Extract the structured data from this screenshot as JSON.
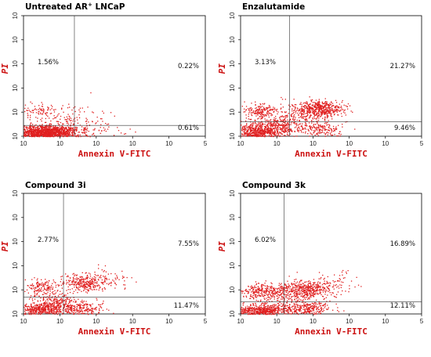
{
  "chart_data": [
    {
      "type": "scatter",
      "title": "Untreated AR",
      "title_superscript": "+",
      "title_suffix": " LNCaP",
      "xlabel": "Annexin V-FITC",
      "ylabel": "PI",
      "xlim": [
        0,
        5
      ],
      "ylim": [
        0,
        5
      ],
      "x_tick_labels": [
        "10",
        "10",
        "10",
        "10",
        "10",
        "5"
      ],
      "y_tick_labels": [
        "10",
        "10",
        "10",
        "10",
        "10",
        "10"
      ],
      "gate": {
        "x": 1.4,
        "y": 0.45
      },
      "quadrants": {
        "upper_left": "1.56%",
        "upper_right": "0.22%",
        "lower_right": "0.61%"
      },
      "clusters": [
        {
          "x": 0.6,
          "y": 0.15,
          "sx": 0.45,
          "sy": 0.15,
          "n": 1500
        },
        {
          "x": 0.5,
          "y": 1.1,
          "sx": 0.22,
          "sy": 0.12,
          "n": 60
        },
        {
          "x": 1.0,
          "y": 0.5,
          "sx": 0.6,
          "sy": 0.4,
          "n": 220
        },
        {
          "x": 2.0,
          "y": 0.3,
          "sx": 0.45,
          "sy": 0.25,
          "n": 40
        }
      ],
      "point_color": "#e02020"
    },
    {
      "type": "scatter",
      "title": "Enzalutamide",
      "xlabel": "Annexin V-FITC",
      "ylabel": "PI",
      "xlim": [
        0,
        5
      ],
      "ylim": [
        0,
        5
      ],
      "x_tick_labels": [
        "10",
        "10",
        "10",
        "10",
        "10",
        "5"
      ],
      "y_tick_labels": [
        "10",
        "10",
        "10",
        "10",
        "10",
        "10"
      ],
      "gate": {
        "x": 1.35,
        "y": 0.6
      },
      "quadrants": {
        "upper_left": "3.13%",
        "upper_right": "21.27%",
        "lower_right": "9.46%"
      },
      "clusters": [
        {
          "x": 0.5,
          "y": 0.2,
          "sx": 0.35,
          "sy": 0.18,
          "n": 650
        },
        {
          "x": 0.55,
          "y": 1.05,
          "sx": 0.22,
          "sy": 0.14,
          "n": 180
        },
        {
          "x": 1.0,
          "y": 0.45,
          "sx": 0.35,
          "sy": 0.2,
          "n": 250
        },
        {
          "x": 2.2,
          "y": 1.15,
          "sx": 0.3,
          "sy": 0.16,
          "n": 500
        },
        {
          "x": 2.2,
          "y": 0.3,
          "sx": 0.3,
          "sy": 0.2,
          "n": 180
        },
        {
          "x": 1.6,
          "y": 0.8,
          "sx": 0.3,
          "sy": 0.3,
          "n": 160
        }
      ],
      "point_color": "#e02020"
    },
    {
      "type": "scatter",
      "title": "Compound 3i",
      "xlabel": "Annexin V-FITC",
      "ylabel": "PI",
      "xlim": [
        0,
        5
      ],
      "ylim": [
        0,
        5
      ],
      "x_tick_labels": [
        "10",
        "10",
        "10",
        "10",
        "10",
        "5"
      ],
      "y_tick_labels": [
        "10",
        "10",
        "10",
        "10",
        "10",
        "10"
      ],
      "gate": {
        "x": 1.1,
        "y": 0.7
      },
      "quadrants": {
        "upper_left": "2.77%",
        "upper_right": "7.55%",
        "lower_right": "11.47%"
      },
      "clusters": [
        {
          "x": 0.5,
          "y": 0.2,
          "sx": 0.35,
          "sy": 0.15,
          "n": 450
        },
        {
          "x": 0.5,
          "y": 1.15,
          "sx": 0.25,
          "sy": 0.15,
          "n": 150
        },
        {
          "x": 0.9,
          "y": 0.5,
          "sx": 0.3,
          "sy": 0.2,
          "n": 200
        },
        {
          "x": 1.7,
          "y": 1.3,
          "sx": 0.3,
          "sy": 0.18,
          "n": 280
        },
        {
          "x": 1.6,
          "y": 0.25,
          "sx": 0.3,
          "sy": 0.15,
          "n": 220
        },
        {
          "x": 2.3,
          "y": 1.5,
          "sx": 0.35,
          "sy": 0.25,
          "n": 60
        }
      ],
      "point_color": "#e02020"
    },
    {
      "type": "scatter",
      "title": "Compound 3k",
      "xlabel": "Annexin V-FITC",
      "ylabel": "PI",
      "xlim": [
        0,
        5
      ],
      "ylim": [
        0,
        5
      ],
      "x_tick_labels": [
        "10",
        "10",
        "10",
        "10",
        "10",
        "5"
      ],
      "y_tick_labels": [
        "10",
        "10",
        "10",
        "10",
        "10",
        "10"
      ],
      "gate": {
        "x": 1.2,
        "y": 0.5
      },
      "quadrants": {
        "upper_left": "6.02%",
        "upper_right": "16.89%",
        "lower_right": "12.11%"
      },
      "clusters": [
        {
          "x": 0.5,
          "y": 0.15,
          "sx": 0.35,
          "sy": 0.12,
          "n": 550
        },
        {
          "x": 0.6,
          "y": 0.95,
          "sx": 0.3,
          "sy": 0.15,
          "n": 250
        },
        {
          "x": 1.8,
          "y": 1.05,
          "sx": 0.35,
          "sy": 0.17,
          "n": 420
        },
        {
          "x": 1.8,
          "y": 0.25,
          "sx": 0.35,
          "sy": 0.15,
          "n": 280
        },
        {
          "x": 1.2,
          "y": 0.6,
          "sx": 0.4,
          "sy": 0.3,
          "n": 200
        },
        {
          "x": 2.6,
          "y": 1.3,
          "sx": 0.35,
          "sy": 0.3,
          "n": 60
        }
      ],
      "point_color": "#e02020"
    }
  ]
}
